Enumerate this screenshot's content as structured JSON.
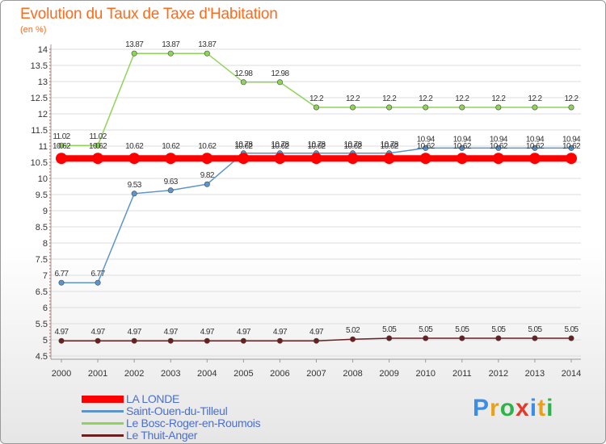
{
  "title": "Evolution du Taux de Taxe d'Habitation",
  "subtitle": "(en %)",
  "logo": {
    "letters": [
      "P",
      "r",
      "o",
      "x",
      "i",
      "t",
      "i"
    ],
    "colors": [
      "#3a8ee6",
      "#e8a11c",
      "#2db34a",
      "#e23b2e",
      "#3a8ee6",
      "#e8a11c",
      "#2db34a"
    ]
  },
  "chart_data": {
    "type": "line",
    "title": "Evolution du Taux de Taxe d'Habitation",
    "ylabel": "(en %)",
    "ylim": [
      4.5,
      14
    ],
    "yticks": [
      "4.5",
      "5",
      "5.5",
      "6",
      "6.5",
      "7",
      "7.5",
      "8",
      "8.5",
      "9",
      "9.5",
      "10",
      "10.5",
      "11",
      "11.5",
      "12",
      "12.5",
      "13",
      "13.5",
      "14"
    ],
    "x": [
      "2000",
      "2001",
      "2002",
      "2003",
      "2004",
      "2005",
      "2006",
      "2007",
      "2008",
      "2009",
      "2010",
      "2011",
      "2012",
      "2013",
      "2014"
    ],
    "series": [
      {
        "name": "Le Thuit-Anger",
        "color": "#6b1f1f",
        "values": [
          4.97,
          4.97,
          4.97,
          4.97,
          4.97,
          4.97,
          4.97,
          4.97,
          5.02,
          5.05,
          5.05,
          5.05,
          5.05,
          5.05,
          5.05
        ],
        "labels": [
          "4.97",
          "4.97",
          "4.97",
          "4.97",
          "4.97",
          "4.97",
          "4.97",
          "4.97",
          "5.02",
          "5.05",
          "5.05",
          "5.05",
          "5.05",
          "5.05",
          "5.05"
        ]
      },
      {
        "name": "Le Bosc-Roger-en-Roumois",
        "color": "#8fd45a",
        "values": [
          11.02,
          11.02,
          13.87,
          13.87,
          13.87,
          12.98,
          12.98,
          12.2,
          12.2,
          12.2,
          12.2,
          12.2,
          12.2,
          12.2,
          12.2
        ],
        "labels": [
          "11.02",
          "11.02",
          "13.87",
          "13.87",
          "13.87",
          "12.98",
          "12.98",
          "12.2",
          "12.2",
          "12.2",
          "12.2",
          "12.2",
          "12.2",
          "12.2",
          "12.2"
        ]
      },
      {
        "name": "Saint-Ouen-du-Tilleul",
        "color": "#5b95c9",
        "values": [
          6.77,
          6.77,
          9.53,
          9.63,
          9.82,
          10.78,
          10.78,
          10.78,
          10.78,
          10.78,
          10.94,
          10.94,
          10.94,
          10.94,
          10.94
        ],
        "labels": [
          "6.77",
          "6.77",
          "9.53",
          "9.63",
          "9.82",
          "10.78",
          "10.78",
          "10.78",
          "10.78",
          "10.78",
          "10.94",
          "10.94",
          "10.94",
          "10.94",
          "10.94"
        ]
      },
      {
        "name": "LA LONDE",
        "color": "#ff0000",
        "values": [
          10.62,
          10.62,
          10.62,
          10.62,
          10.62,
          10.62,
          10.62,
          10.62,
          10.62,
          10.62,
          10.62,
          10.62,
          10.62,
          10.62,
          10.62
        ],
        "labels": [
          "10.62",
          "10.62",
          "10.62",
          "10.62",
          "10.62",
          "10.62",
          "10.62",
          "10.62",
          "10.62",
          "10.62",
          "10.62",
          "10.62",
          "10.62",
          "10.62",
          "10.62"
        ]
      }
    ],
    "legend": [
      {
        "name": "LA LONDE",
        "color": "#ff0000"
      },
      {
        "name": "Saint-Ouen-du-Tilleul",
        "color": "#5b95c9"
      },
      {
        "name": "Le Bosc-Roger-en-Roumois",
        "color": "#8fd45a"
      },
      {
        "name": "Le Thuit-Anger",
        "color": "#6b1f1f"
      }
    ]
  }
}
